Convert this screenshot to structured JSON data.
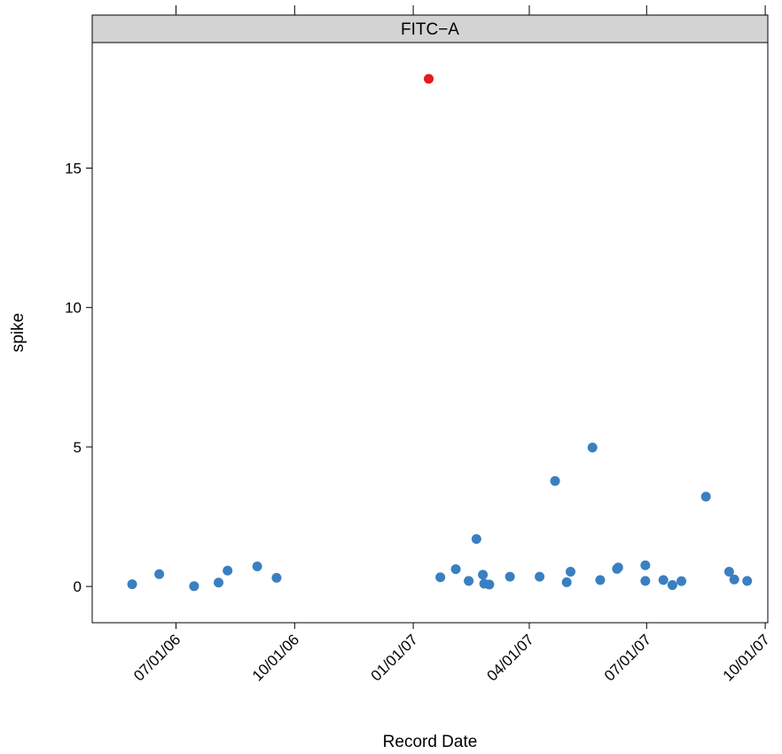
{
  "chart_data": {
    "type": "scatter",
    "panel_title": "FITC−A",
    "xlabel": "Record Date",
    "ylabel": "spike",
    "x_tick_labels": [
      "07/01/06",
      "10/01/06",
      "01/01/07",
      "04/01/07",
      "07/01/07",
      "10/01/07"
    ],
    "y_ticks": [
      0,
      5,
      10,
      15
    ],
    "ylim": [
      -1.3,
      19.5
    ],
    "xlim": [
      "2006-04-27",
      "2007-10-03"
    ],
    "grid": false,
    "legend": "none",
    "colors": {
      "normal": "#3a7fc1",
      "outlier": "#e41a1c",
      "strip": "#d3d3d3"
    },
    "points": [
      {
        "x": "2006-05-28",
        "y": 0.08,
        "group": "normal"
      },
      {
        "x": "2006-06-18",
        "y": 0.44,
        "group": "normal"
      },
      {
        "x": "2006-07-15",
        "y": 0.01,
        "group": "normal"
      },
      {
        "x": "2006-08-03",
        "y": 0.14,
        "group": "normal"
      },
      {
        "x": "2006-08-10",
        "y": 0.57,
        "group": "normal"
      },
      {
        "x": "2006-09-02",
        "y": 0.72,
        "group": "normal"
      },
      {
        "x": "2006-09-17",
        "y": 0.31,
        "group": "normal"
      },
      {
        "x": "2007-01-13",
        "y": 18.2,
        "group": "outlier"
      },
      {
        "x": "2007-01-22",
        "y": 0.33,
        "group": "normal"
      },
      {
        "x": "2007-02-03",
        "y": 0.62,
        "group": "normal"
      },
      {
        "x": "2007-02-13",
        "y": 0.2,
        "group": "normal"
      },
      {
        "x": "2007-02-19",
        "y": 1.7,
        "group": "normal"
      },
      {
        "x": "2007-02-24",
        "y": 0.42,
        "group": "normal"
      },
      {
        "x": "2007-02-25",
        "y": 0.1,
        "group": "normal"
      },
      {
        "x": "2007-03-01",
        "y": 0.07,
        "group": "normal"
      },
      {
        "x": "2007-03-17",
        "y": 0.35,
        "group": "normal"
      },
      {
        "x": "2007-04-09",
        "y": 0.35,
        "group": "normal"
      },
      {
        "x": "2007-04-21",
        "y": 3.78,
        "group": "normal"
      },
      {
        "x": "2007-04-30",
        "y": 0.15,
        "group": "normal"
      },
      {
        "x": "2007-05-03",
        "y": 0.53,
        "group": "normal"
      },
      {
        "x": "2007-05-20",
        "y": 4.98,
        "group": "normal"
      },
      {
        "x": "2007-05-26",
        "y": 0.23,
        "group": "normal"
      },
      {
        "x": "2007-06-08",
        "y": 0.63,
        "group": "normal"
      },
      {
        "x": "2007-06-09",
        "y": 0.68,
        "group": "normal"
      },
      {
        "x": "2007-06-30",
        "y": 0.76,
        "group": "normal"
      },
      {
        "x": "2007-06-30",
        "y": 0.2,
        "group": "normal"
      },
      {
        "x": "2007-07-14",
        "y": 0.23,
        "group": "normal"
      },
      {
        "x": "2007-07-21",
        "y": 0.05,
        "group": "normal"
      },
      {
        "x": "2007-07-28",
        "y": 0.19,
        "group": "normal"
      },
      {
        "x": "2007-08-16",
        "y": 3.22,
        "group": "normal"
      },
      {
        "x": "2007-09-03",
        "y": 0.53,
        "group": "normal"
      },
      {
        "x": "2007-09-07",
        "y": 0.25,
        "group": "normal"
      },
      {
        "x": "2007-09-17",
        "y": 0.2,
        "group": "normal"
      }
    ]
  }
}
